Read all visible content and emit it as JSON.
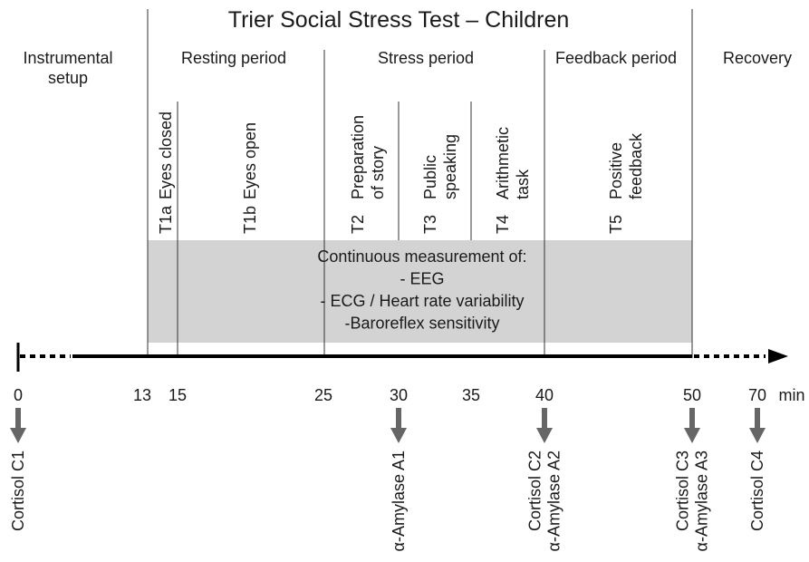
{
  "title": "Trier Social Stress Test – Children",
  "periods": [
    {
      "lines": [
        "Instrumental",
        "setup"
      ]
    },
    {
      "lines": [
        "Resting period"
      ]
    },
    {
      "lines": [
        "Stress period"
      ]
    },
    {
      "lines": [
        "Feedback period"
      ]
    },
    {
      "lines": [
        "Recovery"
      ]
    }
  ],
  "phases": [
    {
      "code": "T1a",
      "lines": [
        "Eyes closed"
      ]
    },
    {
      "code": "T1b",
      "lines": [
        "Eyes open"
      ]
    },
    {
      "code": "T2",
      "lines": [
        "Preparation",
        "of story"
      ]
    },
    {
      "code": "T3",
      "lines": [
        "Public",
        "speaking"
      ]
    },
    {
      "code": "T4",
      "lines": [
        "Arithmetic",
        "task"
      ]
    },
    {
      "code": "T5",
      "lines": [
        "Positive",
        "feedback"
      ]
    }
  ],
  "measurement": {
    "lines": [
      "Continuous measurement of:",
      "- EEG",
      "- ECG / Heart rate variability",
      "-Baroreflex sensitivity"
    ]
  },
  "timeline": {
    "ticks": [
      "0",
      "13",
      "15",
      "25",
      "30",
      "35",
      "40",
      "50",
      "70"
    ],
    "unit": "min"
  },
  "samples": [
    {
      "lines": [
        "Cortisol C1"
      ]
    },
    {
      "lines": [
        "α-Amylase A1"
      ]
    },
    {
      "lines": [
        "Cortisol C2",
        "α-Amylase A2"
      ]
    },
    {
      "lines": [
        "Cortisol C3",
        "α-Amylase A3"
      ]
    },
    {
      "lines": [
        "Cortisol C4"
      ]
    }
  ]
}
